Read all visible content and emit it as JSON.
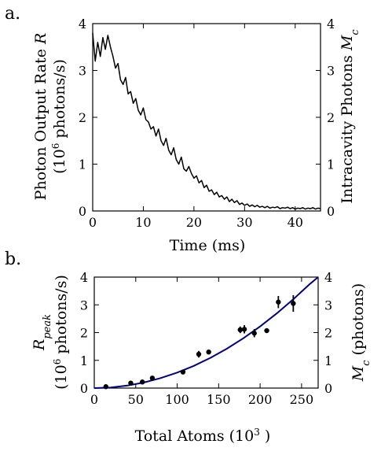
{
  "chart_data": [
    {
      "panel": "a.",
      "type": "line",
      "xlabel": "Time (ms)",
      "ylabel_left": [
        "Photon Output Rate R",
        "(10^6 photons/s)"
      ],
      "ylabel_right": "Intracavity Photons M_c",
      "xlim": [
        0,
        45
      ],
      "ylim": [
        0,
        4
      ],
      "xticks": [
        0,
        10,
        20,
        30,
        40
      ],
      "yticks_left": [
        0,
        1,
        2,
        3,
        4
      ],
      "yticks_right": [
        0,
        1,
        2,
        3,
        4
      ],
      "grid": false,
      "series": [
        {
          "color": "#000000",
          "x": [
            0,
            0.5,
            1,
            1.5,
            2,
            2.5,
            3,
            3.5,
            4,
            4.5,
            5,
            5.5,
            6,
            6.5,
            7,
            7.5,
            8,
            8.5,
            9,
            9.5,
            10,
            10.5,
            11,
            11.5,
            12,
            12.5,
            13,
            13.5,
            14,
            14.5,
            15,
            15.5,
            16,
            16.5,
            17,
            17.5,
            18,
            18.5,
            19,
            19.5,
            20,
            20.5,
            21,
            21.5,
            22,
            22.5,
            23,
            23.5,
            24,
            24.5,
            25,
            25.5,
            26,
            26.5,
            27,
            27.5,
            28,
            28.5,
            29,
            29.5,
            30,
            30.5,
            31,
            31.5,
            32,
            32.5,
            33,
            33.5,
            34,
            34.5,
            35,
            35.5,
            36,
            36.5,
            37,
            37.5,
            38,
            38.5,
            39,
            39.5,
            40,
            40.5,
            41,
            41.5,
            42,
            42.5,
            43,
            43.5,
            44,
            44.5,
            45
          ],
          "y": [
            3.8,
            3.2,
            3.6,
            3.3,
            3.7,
            3.45,
            3.75,
            3.5,
            3.3,
            3.05,
            3.15,
            2.8,
            2.7,
            2.85,
            2.5,
            2.55,
            2.3,
            2.4,
            2.15,
            2.05,
            2.2,
            1.95,
            1.9,
            1.75,
            1.8,
            1.6,
            1.75,
            1.5,
            1.4,
            1.55,
            1.3,
            1.2,
            1.35,
            1.1,
            1.0,
            1.15,
            0.9,
            0.85,
            0.95,
            0.8,
            0.7,
            0.75,
            0.6,
            0.65,
            0.5,
            0.55,
            0.42,
            0.45,
            0.35,
            0.4,
            0.3,
            0.33,
            0.25,
            0.3,
            0.2,
            0.25,
            0.18,
            0.22,
            0.14,
            0.17,
            0.12,
            0.15,
            0.1,
            0.13,
            0.09,
            0.12,
            0.08,
            0.1,
            0.07,
            0.1,
            0.06,
            0.08,
            0.07,
            0.09,
            0.05,
            0.07,
            0.06,
            0.08,
            0.05,
            0.07,
            0.04,
            0.06,
            0.05,
            0.07,
            0.04,
            0.06,
            0.05,
            0.07,
            0.04,
            0.06,
            0.05
          ]
        }
      ]
    },
    {
      "panel": "b.",
      "type": "scatter",
      "xlabel": "Total Atoms (10^3 )",
      "ylabel_left": [
        "R_peak",
        "(10^6 photons/s)"
      ],
      "ylabel_right": "M_c (photons)",
      "xlim": [
        0,
        270
      ],
      "ylim": [
        0,
        4
      ],
      "xticks": [
        0,
        50,
        100,
        150,
        200,
        250
      ],
      "yticks_left": [
        0,
        1,
        2,
        3,
        4
      ],
      "yticks_right": [
        0,
        1,
        2,
        3,
        4
      ],
      "grid": false,
      "series": [
        {
          "kind": "points",
          "color": "#000000",
          "x": [
            14,
            44,
            58,
            70,
            107,
            126,
            138,
            176,
            181,
            193,
            208,
            222,
            240
          ],
          "y": [
            0.05,
            0.18,
            0.22,
            0.36,
            0.58,
            1.22,
            1.3,
            2.1,
            2.12,
            1.98,
            2.07,
            3.1,
            3.05
          ],
          "yerr": [
            0.03,
            0.04,
            0.05,
            0.05,
            0.07,
            0.12,
            0.06,
            0.12,
            0.15,
            0.15,
            0.08,
            0.22,
            0.3
          ]
        },
        {
          "kind": "fit",
          "color": "#000080",
          "x": [
            0,
            20,
            40,
            60,
            80,
            100,
            120,
            140,
            160,
            180,
            200,
            220,
            240,
            260,
            270
          ],
          "y": [
            0,
            0.02,
            0.09,
            0.2,
            0.36,
            0.56,
            0.8,
            1.09,
            1.42,
            1.8,
            2.22,
            2.69,
            3.2,
            3.75,
            4.0
          ]
        }
      ]
    }
  ]
}
